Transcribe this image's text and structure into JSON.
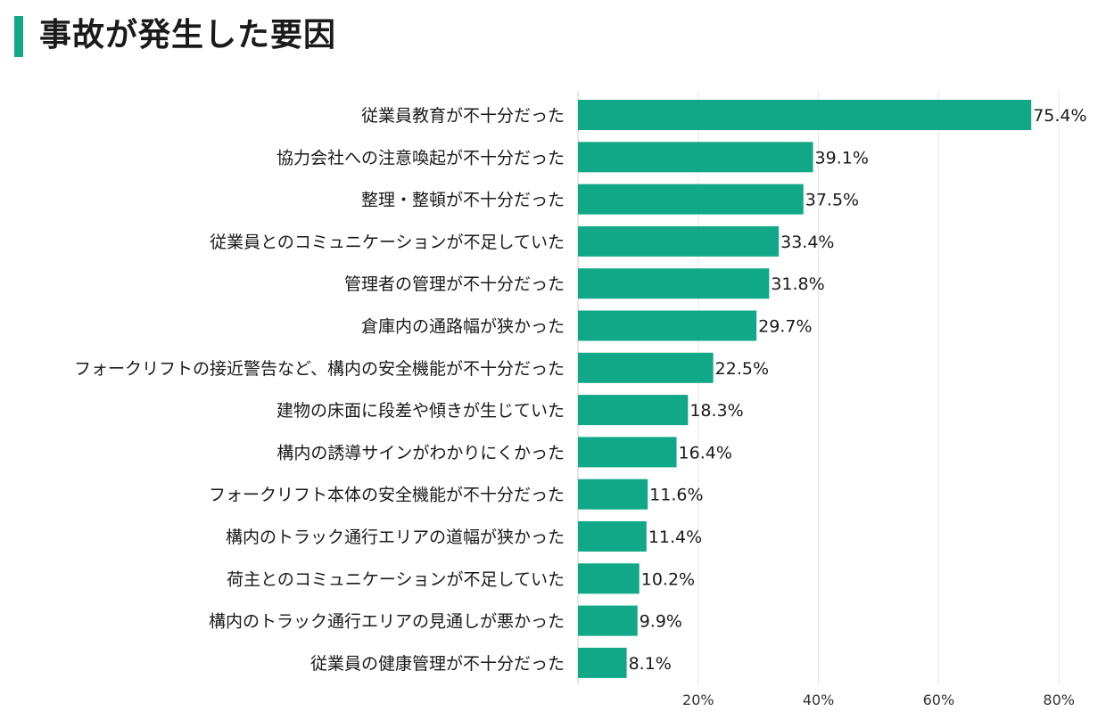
{
  "page": {
    "title": "事故が発生した要因"
  },
  "colors": {
    "accent": "#10a886",
    "bar": "#10a886",
    "grid": "#e6e6e6",
    "axis": "#cccccc"
  },
  "chart_data": {
    "type": "bar",
    "orientation": "horizontal",
    "title": "事故が発生した要因",
    "xlabel": "",
    "ylabel": "",
    "xlim": [
      0,
      80
    ],
    "xticks": [
      20,
      40,
      60,
      80
    ],
    "tick_labels": [
      "20%",
      "40%",
      "60%",
      "80%"
    ],
    "grid": true,
    "categories": [
      "従業員教育が不十分だった",
      "協力会社への注意喚起が不十分だった",
      "整理・整頓が不十分だった",
      "従業員とのコミュニケーションが不足していた",
      "管理者の管理が不十分だった",
      "倉庫内の通路幅が狭かった",
      "フォークリフトの接近警告など、構内の安全機能が不十分だった",
      "建物の床面に段差や傾きが生じていた",
      "構内の誘導サインがわかりにくかった",
      "フォークリフト本体の安全機能が不十分だった",
      "構内のトラック通行エリアの道幅が狭かった",
      "荷主とのコミュニケーションが不足していた",
      "構内のトラック通行エリアの見通しが悪かった",
      "従業員の健康管理が不十分だった"
    ],
    "values": [
      75.4,
      39.1,
      37.5,
      33.4,
      31.8,
      29.7,
      22.5,
      18.3,
      16.4,
      11.6,
      11.4,
      10.2,
      9.9,
      8.1
    ],
    "value_labels": [
      "75.4%",
      "39.1%",
      "37.5%",
      "33.4%",
      "31.8%",
      "29.7%",
      "22.5%",
      "18.3%",
      "16.4%",
      "11.6%",
      "11.4%",
      "10.2%",
      "9.9%",
      "8.1%"
    ]
  }
}
